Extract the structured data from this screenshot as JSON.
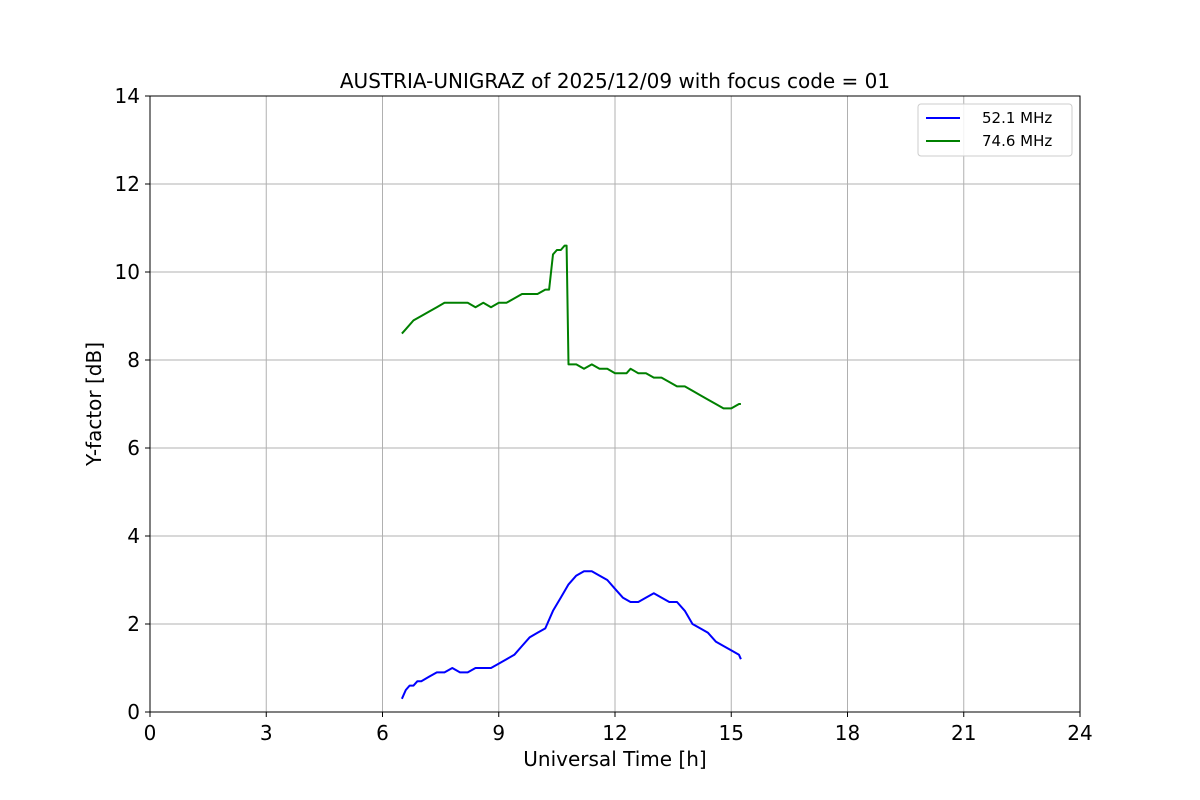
{
  "chart_data": {
    "type": "line",
    "title": "AUSTRIA-UNIGRAZ of 2025/12/09 with focus code = 01",
    "xlabel": "Universal Time [h]",
    "ylabel": "Y-factor [dB]",
    "xlim": [
      0,
      24
    ],
    "ylim": [
      0,
      14
    ],
    "xticks": [
      0,
      3,
      6,
      9,
      12,
      15,
      18,
      21,
      24
    ],
    "yticks": [
      0,
      2,
      4,
      6,
      8,
      10,
      12,
      14
    ],
    "grid": true,
    "legend_position": "top-right",
    "series": [
      {
        "name": "52.1 MHz",
        "color": "#0000ff",
        "x": [
          6.5,
          6.6,
          6.7,
          6.8,
          6.9,
          7.0,
          7.2,
          7.4,
          7.6,
          7.8,
          8.0,
          8.2,
          8.4,
          8.6,
          8.8,
          9.0,
          9.2,
          9.4,
          9.6,
          9.8,
          10.0,
          10.2,
          10.4,
          10.6,
          10.8,
          11.0,
          11.2,
          11.4,
          11.6,
          11.8,
          12.0,
          12.2,
          12.4,
          12.6,
          12.8,
          13.0,
          13.2,
          13.4,
          13.6,
          13.8,
          14.0,
          14.2,
          14.4,
          14.6,
          14.8,
          15.0,
          15.2,
          15.25
        ],
        "y": [
          0.3,
          0.5,
          0.6,
          0.6,
          0.7,
          0.7,
          0.8,
          0.9,
          0.9,
          1.0,
          0.9,
          0.9,
          1.0,
          1.0,
          1.0,
          1.1,
          1.2,
          1.3,
          1.5,
          1.7,
          1.8,
          1.9,
          2.3,
          2.6,
          2.9,
          3.1,
          3.2,
          3.2,
          3.1,
          3.0,
          2.8,
          2.6,
          2.5,
          2.5,
          2.6,
          2.7,
          2.6,
          2.5,
          2.5,
          2.3,
          2.0,
          1.9,
          1.8,
          1.6,
          1.5,
          1.4,
          1.3,
          1.2
        ]
      },
      {
        "name": "74.6 MHz",
        "color": "#008000",
        "x": [
          6.5,
          6.6,
          6.8,
          7.0,
          7.2,
          7.4,
          7.6,
          7.8,
          8.0,
          8.2,
          8.4,
          8.6,
          8.8,
          9.0,
          9.2,
          9.4,
          9.6,
          9.8,
          10.0,
          10.2,
          10.3,
          10.4,
          10.5,
          10.6,
          10.7,
          10.75,
          10.8,
          11.0,
          11.2,
          11.4,
          11.6,
          11.8,
          12.0,
          12.2,
          12.3,
          12.4,
          12.6,
          12.8,
          13.0,
          13.2,
          13.4,
          13.6,
          13.8,
          14.0,
          14.2,
          14.4,
          14.6,
          14.8,
          15.0,
          15.2,
          15.25
        ],
        "y": [
          8.6,
          8.7,
          8.9,
          9.0,
          9.1,
          9.2,
          9.3,
          9.3,
          9.3,
          9.3,
          9.2,
          9.3,
          9.2,
          9.3,
          9.3,
          9.4,
          9.5,
          9.5,
          9.5,
          9.6,
          9.6,
          10.4,
          10.5,
          10.5,
          10.6,
          10.6,
          7.9,
          7.9,
          7.8,
          7.9,
          7.8,
          7.8,
          7.7,
          7.7,
          7.7,
          7.8,
          7.7,
          7.7,
          7.6,
          7.6,
          7.5,
          7.4,
          7.4,
          7.3,
          7.2,
          7.1,
          7.0,
          6.9,
          6.9,
          7.0,
          7.0
        ]
      }
    ]
  }
}
